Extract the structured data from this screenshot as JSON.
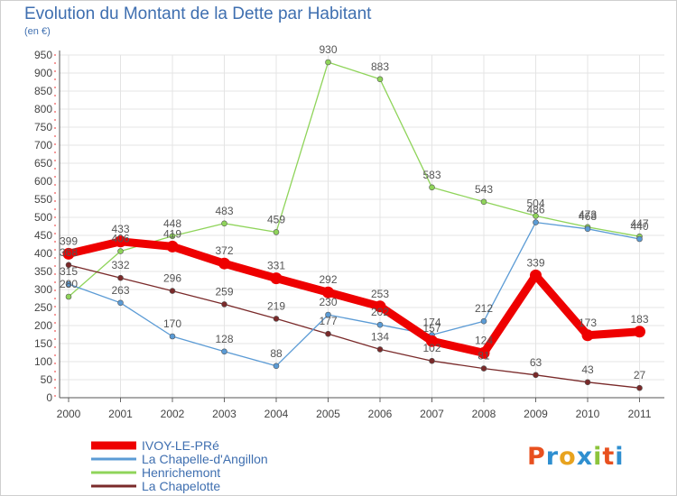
{
  "title": "Evolution du Montant de la Dette par Habitant",
  "subtitle": "(en €)",
  "logo": {
    "text": "Proxiti",
    "colors": [
      "#e8501f",
      "#2f8fd0",
      "#e8a31f",
      "#2f8fd0",
      "#8cc43c",
      "#e8501f",
      "#2f8fd0"
    ]
  },
  "chart_data": {
    "type": "line",
    "x": [
      "2000",
      "2001",
      "2002",
      "2003",
      "2004",
      "2005",
      "2006",
      "2007",
      "2008",
      "2009",
      "2010",
      "2011"
    ],
    "ylim": [
      0,
      950
    ],
    "yticks": [
      0,
      50,
      100,
      150,
      200,
      250,
      300,
      350,
      400,
      450,
      500,
      550,
      600,
      650,
      700,
      750,
      800,
      850,
      900,
      950
    ],
    "grid": true,
    "legend_position": "bottom-left",
    "series": [
      {
        "name": "IVOY-LE-PRé",
        "color": "#ee0000",
        "values": [
          399,
          433,
          419,
          372,
          331,
          292,
          253,
          157,
          124,
          339,
          173,
          183
        ],
        "labels": [
          "399",
          "433",
          "419",
          "372",
          "331",
          "292",
          "253",
          "157",
          "124",
          "339",
          "173",
          "183"
        ]
      },
      {
        "name": "La Chapelle-d'Angillon",
        "color": "#5b9bd5",
        "values": [
          315,
          263,
          170,
          128,
          88,
          230,
          202,
          174,
          212,
          486,
          468,
          440
        ],
        "labels": [
          "315",
          "263",
          "170",
          "128",
          "88",
          "230",
          "202",
          "174",
          "212",
          "486",
          "468",
          "440"
        ]
      },
      {
        "name": "Henrichemont",
        "color": "#8fd45a",
        "values": [
          280,
          406,
          448,
          483,
          459,
          930,
          883,
          583,
          543,
          504,
          473,
          447
        ],
        "labels": [
          "280",
          "406",
          "448",
          "483",
          "459",
          "930",
          "883",
          "583",
          "543",
          "504",
          "473",
          "447"
        ]
      },
      {
        "name": "La Chapelotte",
        "color": "#7a2a2a",
        "values": [
          368,
          332,
          296,
          259,
          219,
          177,
          134,
          102,
          81,
          63,
          43,
          27
        ],
        "labels": [
          "368",
          "332",
          "296",
          "259",
          "219",
          "177",
          "134",
          "102",
          "81",
          "63",
          "43",
          "27"
        ]
      }
    ]
  }
}
